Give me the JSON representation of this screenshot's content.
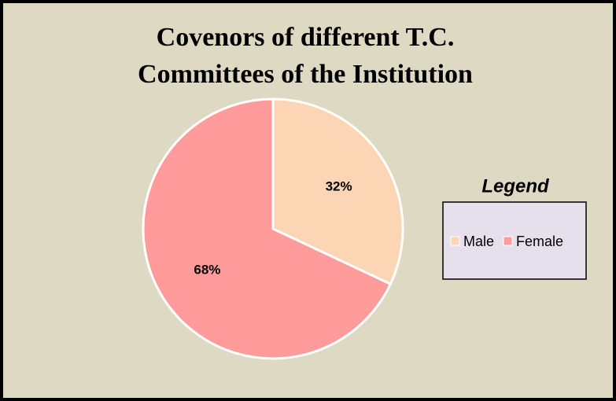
{
  "chart_data": {
    "type": "pie",
    "title": "Covenors of different T.C. Committees of the Institution",
    "legend_title": "Legend",
    "legend": "right",
    "categories": [
      "Male",
      "Female"
    ],
    "values": [
      32,
      68
    ],
    "value_labels": [
      "32%",
      "68%"
    ],
    "colors": [
      "#fcd5b4",
      "#ff9b9b"
    ]
  }
}
